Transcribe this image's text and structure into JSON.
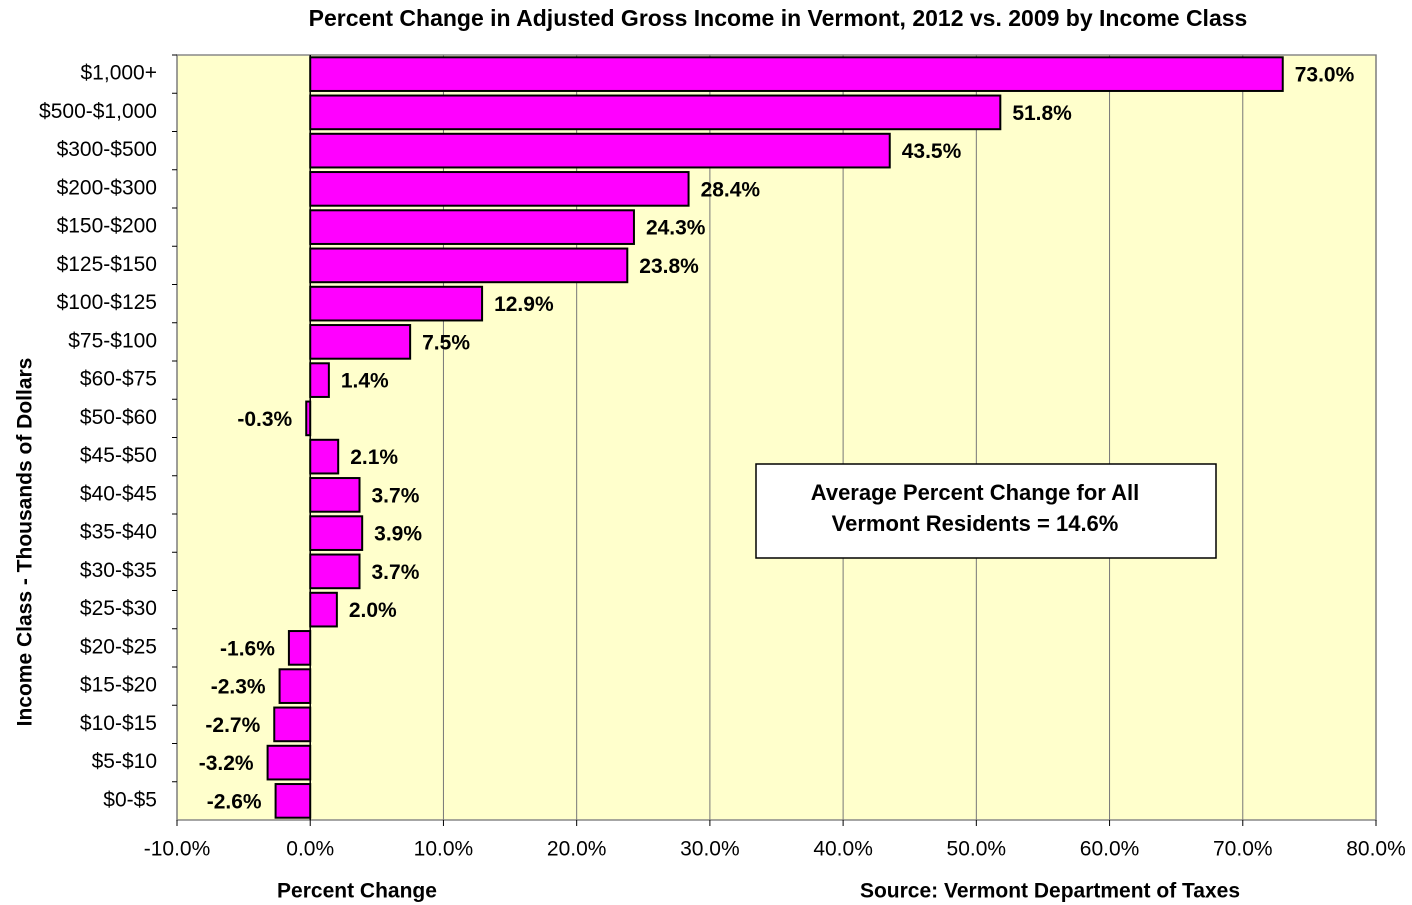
{
  "chart_data": {
    "type": "hbar",
    "title": "Percent Change in Adjusted Gross Income in Vermont, 2012 vs. 2009 by Income Class",
    "x_label": "Percent Change",
    "y_label": "Income Class - Thousands of Dollars",
    "source": "Source:  Vermont Department of Taxes",
    "annotation": [
      "Average Percent Change for All",
      "Vermont Residents = 14.6%"
    ],
    "categories": [
      "$1,000+",
      "$500-$1,000",
      "$300-$500",
      "$200-$300",
      "$150-$200",
      "$125-$150",
      "$100-$125",
      "$75-$100",
      "$60-$75",
      "$50-$60",
      "$45-$50",
      "$40-$45",
      "$35-$40",
      "$30-$35",
      "$25-$30",
      "$20-$25",
      "$15-$20",
      "$10-$15",
      "$5-$10",
      "$0-$5"
    ],
    "values": [
      73.0,
      51.8,
      43.5,
      28.4,
      24.3,
      23.8,
      12.9,
      7.5,
      1.4,
      -0.3,
      2.1,
      3.7,
      3.9,
      3.7,
      2.0,
      -1.6,
      -2.3,
      -2.7,
      -3.2,
      -2.6
    ],
    "value_labels": [
      "73.0%",
      "51.8%",
      "43.5%",
      "28.4%",
      "24.3%",
      "23.8%",
      "12.9%",
      "7.5%",
      "1.4%",
      "-0.3%",
      "2.1%",
      "3.7%",
      "3.9%",
      "3.7%",
      "2.0%",
      "-1.6%",
      "-2.3%",
      "-2.7%",
      "-3.2%",
      "-2.6%"
    ],
    "color": "#ff00ff",
    "xlim": [
      -10,
      80
    ],
    "xticks": [
      {
        "value": -10,
        "label": "-10.0%"
      },
      {
        "value": 0,
        "label": "0.0%"
      },
      {
        "value": 10,
        "label": "10.0%"
      },
      {
        "value": 20,
        "label": "20.0%"
      },
      {
        "value": 30,
        "label": "30.0%"
      },
      {
        "value": 40,
        "label": "40.0%"
      },
      {
        "value": 50,
        "label": "50.0%"
      },
      {
        "value": 60,
        "label": "60.0%"
      },
      {
        "value": 70,
        "label": "70.0%"
      },
      {
        "value": 80,
        "label": "80.0%"
      }
    ],
    "grid": true
  }
}
